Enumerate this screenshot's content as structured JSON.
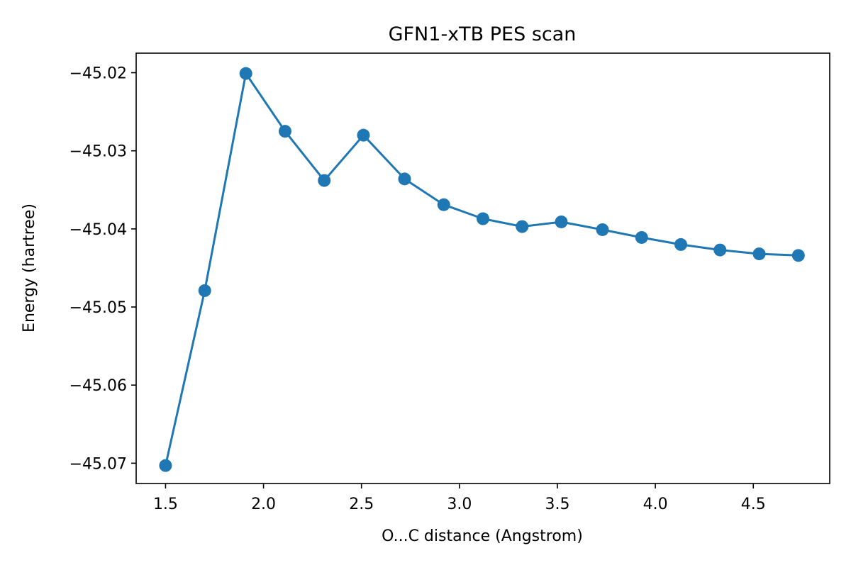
{
  "chart_data": {
    "type": "line",
    "title": "GFN1-xTB PES scan",
    "xlabel": "O...C distance (Angstrom)",
    "ylabel": "Energy (hartree)",
    "xlim": [
      1.35,
      4.89
    ],
    "ylim": [
      -45.0726,
      -45.0175
    ],
    "xticks": [
      1.5,
      2.0,
      2.5,
      3.0,
      3.5,
      4.0,
      4.5
    ],
    "xtick_labels": [
      "1.5",
      "2.0",
      "2.5",
      "3.0",
      "3.5",
      "4.0",
      "4.5"
    ],
    "yticks": [
      -45.07,
      -45.06,
      -45.05,
      -45.04,
      -45.03,
      -45.02
    ],
    "ytick_labels": [
      "−45.07",
      "−45.06",
      "−45.05",
      "−45.04",
      "−45.03",
      "−45.02"
    ],
    "grid": false,
    "legend": "none",
    "marker": "circle",
    "series": [
      {
        "color": "#1f77b4",
        "x": [
          1.5,
          1.7,
          1.91,
          2.11,
          2.31,
          2.51,
          2.72,
          2.92,
          3.12,
          3.32,
          3.52,
          3.73,
          3.93,
          4.13,
          4.33,
          4.53,
          4.73
        ],
        "y": [
          -45.0703,
          -45.0479,
          -45.0201,
          -45.0275,
          -45.0338,
          -45.028,
          -45.0336,
          -45.0369,
          -45.0387,
          -45.0397,
          -45.0391,
          -45.0401,
          -45.0411,
          -45.042,
          -45.0427,
          -45.0432,
          -45.0434
        ]
      }
    ]
  }
}
